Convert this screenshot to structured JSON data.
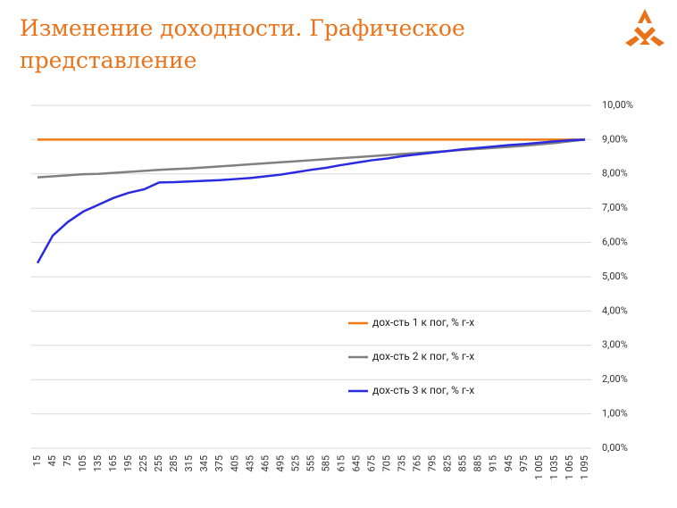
{
  "chart_data": {
    "type": "line",
    "title": "Изменение доходности. Графическое представление",
    "categories": [
      "15",
      "45",
      "75",
      "105",
      "135",
      "165",
      "195",
      "225",
      "255",
      "285",
      "315",
      "345",
      "375",
      "405",
      "435",
      "465",
      "495",
      "525",
      "555",
      "585",
      "615",
      "645",
      "675",
      "705",
      "735",
      "765",
      "795",
      "825",
      "855",
      "885",
      "915",
      "945",
      "975",
      "1 005",
      "1 035",
      "1 065",
      "1 095"
    ],
    "series": [
      {
        "name": "дох-сть 1 к пог, % г-х",
        "color": "#f07a14",
        "values": [
          9,
          9,
          9,
          9,
          9,
          9,
          9,
          9,
          9,
          9,
          9,
          9,
          9,
          9,
          9,
          9,
          9,
          9,
          9,
          9,
          9,
          9,
          9,
          9,
          9,
          9,
          9,
          9,
          9,
          9,
          9,
          9,
          9,
          9,
          9,
          9,
          9
        ]
      },
      {
        "name": "дох-сть 2 к пог, % г-х",
        "color": "#808080",
        "values": [
          7.9,
          7.93,
          7.96,
          7.99,
          8.0,
          8.03,
          8.06,
          8.09,
          8.12,
          8.14,
          8.16,
          8.19,
          8.22,
          8.25,
          8.28,
          8.31,
          8.34,
          8.37,
          8.4,
          8.43,
          8.46,
          8.49,
          8.52,
          8.55,
          8.58,
          8.61,
          8.64,
          8.67,
          8.7,
          8.73,
          8.76,
          8.79,
          8.82,
          8.86,
          8.9,
          8.95,
          9.0
        ]
      },
      {
        "name": "дох-сть 3 к пог, % г-х",
        "color": "#2a2ae0",
        "values": [
          5.4,
          6.2,
          6.6,
          6.9,
          7.1,
          7.3,
          7.45,
          7.55,
          7.75,
          7.76,
          7.78,
          7.8,
          7.82,
          7.85,
          7.88,
          7.93,
          7.98,
          8.05,
          8.12,
          8.18,
          8.26,
          8.33,
          8.4,
          8.45,
          8.52,
          8.57,
          8.62,
          8.67,
          8.72,
          8.76,
          8.8,
          8.84,
          8.87,
          8.91,
          8.95,
          8.98,
          9.0
        ]
      }
    ],
    "ylim": [
      0,
      10
    ],
    "yticks": [
      {
        "value": 0,
        "label": "0,00%"
      },
      {
        "value": 1,
        "label": "1,00%"
      },
      {
        "value": 2,
        "label": "2,00%"
      },
      {
        "value": 3,
        "label": "3,00%"
      },
      {
        "value": 4,
        "label": "4,00%"
      },
      {
        "value": 5,
        "label": "5,00%"
      },
      {
        "value": 6,
        "label": "6,00%"
      },
      {
        "value": 7,
        "label": "7,00%"
      },
      {
        "value": 8,
        "label": "8,00%"
      },
      {
        "value": 9,
        "label": "9,00%"
      },
      {
        "value": 10,
        "label": "10,00%"
      }
    ],
    "grid": true
  }
}
